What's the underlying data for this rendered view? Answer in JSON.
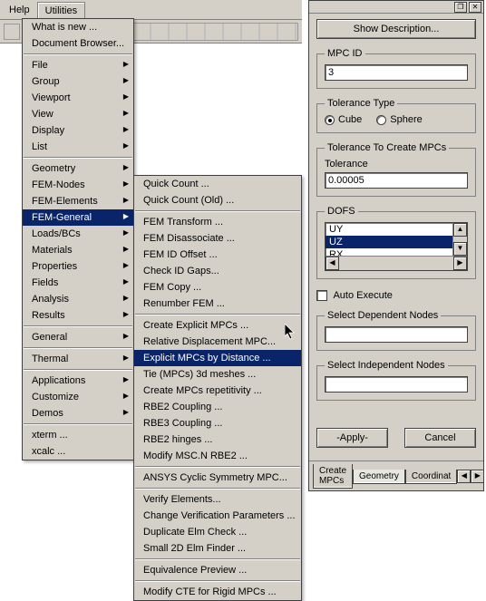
{
  "colors": {
    "face": "#d4d0c8",
    "highlight_bg": "#0a246a",
    "highlight_fg": "#ffffff",
    "border_dark": "#404040",
    "border_mid": "#808080",
    "white": "#ffffff"
  },
  "menubar": {
    "items": [
      "Help",
      "Utilities"
    ],
    "open_index": 1
  },
  "dropdown_l1": {
    "groups": [
      [
        "What is new ...",
        "Document Browser..."
      ],
      [
        "File",
        "Group",
        "Viewport",
        "View",
        "Display",
        "List"
      ],
      [
        "Geometry",
        "FEM-Nodes",
        "FEM-Elements",
        "FEM-General",
        "Loads/BCs",
        "Materials",
        "Properties",
        "Fields",
        "Analysis",
        "Results"
      ],
      [
        "General"
      ],
      [
        "Thermal"
      ],
      [
        "Applications",
        "Customize",
        "Demos"
      ],
      [
        "xterm ...",
        "xcalc ..."
      ]
    ],
    "submenu_flags": {
      "File": true,
      "Group": true,
      "Viewport": true,
      "View": true,
      "Display": true,
      "List": true,
      "Geometry": true,
      "FEM-Nodes": true,
      "FEM-Elements": true,
      "FEM-General": true,
      "Loads/BCs": true,
      "Materials": true,
      "Properties": true,
      "Fields": true,
      "Analysis": true,
      "Results": true,
      "General": true,
      "Thermal": true,
      "Applications": true,
      "Customize": true,
      "Demos": true
    },
    "highlighted": "FEM-General"
  },
  "dropdown_l2": {
    "groups": [
      [
        "Quick Count ...",
        "Quick Count (Old) ..."
      ],
      [
        "FEM Transform ...",
        "FEM Disassociate ...",
        "FEM ID Offset ...",
        "Check ID Gaps...",
        "FEM Copy ...",
        "Renumber FEM ..."
      ],
      [
        "Create Explicit MPCs ...",
        "Relative Displacement MPC...",
        "Explicit MPCs by Distance ...",
        "Tie (MPCs) 3d meshes ...",
        "Create MPCs repetitivity ...",
        "RBE2 Coupling ...",
        "RBE3 Coupling ...",
        "RBE2 hinges ...",
        "Modify MSC.N RBE2 ..."
      ],
      [
        "ANSYS Cyclic Symmetry MPC..."
      ],
      [
        "Verify Elements...",
        "Change Verification Parameters ...",
        "Duplicate Elm Check ...",
        "Small 2D Elm Finder ..."
      ],
      [
        "Equivalence Preview ..."
      ],
      [
        "Modify CTE for Rigid MPCs ..."
      ]
    ],
    "highlighted": "Explicit MPCs by Distance ..."
  },
  "panel": {
    "show_desc_btn": "Show Description...",
    "mpc_id": {
      "label": "MPC ID",
      "value": "3"
    },
    "tolerance_type": {
      "legend": "Tolerance Type",
      "options": [
        "Cube",
        "Sphere"
      ],
      "selected": "Cube"
    },
    "tolerance": {
      "legend": "Tolerance To Create MPCs",
      "label": "Tolerance",
      "value": "0.00005"
    },
    "dofs": {
      "legend": "DOFS",
      "options": [
        "UY",
        "UZ",
        "RX"
      ],
      "selected": "UZ"
    },
    "auto_execute_label": "Auto Execute",
    "select_dep_label": "Select Dependent Nodes",
    "select_indep_label": "Select Independent Nodes",
    "apply_btn": "-Apply-",
    "cancel_btn": "Cancel",
    "tabs": [
      "Create MPCs",
      "Geometry",
      "Coordinat"
    ],
    "active_tab": 1
  }
}
